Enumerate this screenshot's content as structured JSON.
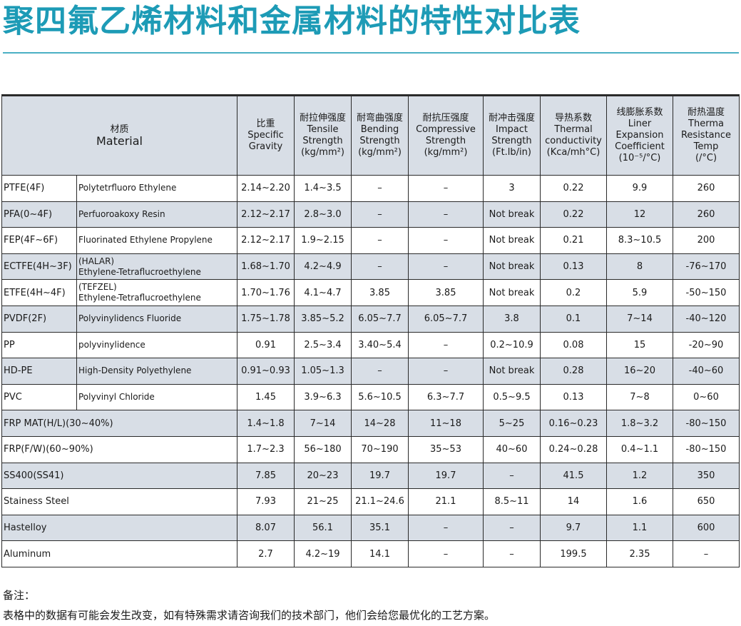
{
  "title": "聚四氟乙烯材料和金属材料的特性对比表",
  "header": {
    "material": {
      "zh": "材质",
      "en": "Material"
    },
    "columns": [
      {
        "zh": "比重",
        "en": [
          "Specific",
          "Gravity"
        ]
      },
      {
        "zh": "耐拉伸强度",
        "en": [
          "Tensile",
          "Strength",
          "(kg/mm²)"
        ]
      },
      {
        "zh": "耐弯曲强度",
        "en": [
          "Bending",
          "Strength",
          "(kg/mm²)"
        ]
      },
      {
        "zh": "耐抗压强度",
        "en": [
          "Compressive",
          "Strength",
          "(kg/mm²)"
        ]
      },
      {
        "zh": "耐冲击强度",
        "en": [
          "Impact",
          "Strength",
          "(Ft.lb/in)"
        ]
      },
      {
        "zh": "导热系数",
        "en": [
          "Thermal",
          "conductivity",
          "(Kca/mh°C)"
        ]
      },
      {
        "zh": "线膨胀系数",
        "en": [
          "Liner",
          "Expansion",
          "Coefficient",
          "(10⁻⁵/°C)"
        ]
      },
      {
        "zh": "耐热温度",
        "en": [
          "Therma",
          "Resistance",
          "Temp",
          "(/°C)"
        ]
      }
    ]
  },
  "rows": [
    {
      "code": "PTFE(4F)",
      "desc": [
        "Polytetrfluoro Ethylene"
      ],
      "values": [
        "2.14~2.20",
        "1.4~3.5",
        "–",
        "–",
        "3",
        "0.22",
        "9.9",
        "260"
      ],
      "shaded": false
    },
    {
      "code": "PFA(0~4F)",
      "desc": [
        "Perfuoroakoxy Resin"
      ],
      "values": [
        "2.12~2.17",
        "2.8~3.0",
        "–",
        "–",
        "Not break",
        "0.22",
        "12",
        "260"
      ],
      "shaded": true
    },
    {
      "code": "FEP(4F~6F)",
      "desc": [
        "Fluorinated Ethylene Propylene"
      ],
      "values": [
        "2.12~2.17",
        "1.9~2.15",
        "–",
        "–",
        "Not break",
        "0.21",
        "8.3~10.5",
        "200"
      ],
      "shaded": false
    },
    {
      "code": "ECTFE(4H~3F)",
      "desc": [
        "(HALAR)",
        "Ethylene-Tetraflucroethylene"
      ],
      "values": [
        "1.68~1.70",
        "4.2~4.9",
        "–",
        "–",
        "Not break",
        "0.13",
        "8",
        "-76~170"
      ],
      "shaded": true
    },
    {
      "code": "ETFE(4H~4F)",
      "desc": [
        "(TEFZEL)",
        "Ethylene-Tetraflucroethylene"
      ],
      "values": [
        "1.70~1.76",
        "4.1~4.7",
        "3.85",
        "3.85",
        "Not break",
        "0.2",
        "5.9",
        "-50~150"
      ],
      "shaded": false
    },
    {
      "code": "PVDF(2F)",
      "desc": [
        "Polyvinylidencs Fluoride"
      ],
      "values": [
        "1.75~1.78",
        "3.85~5.2",
        "6.05~7.7",
        "6.05~7.7",
        "3.8",
        "0.1",
        "7~14",
        "-40~120"
      ],
      "shaded": true
    },
    {
      "code": "PP",
      "desc": [
        "polyvinylidence"
      ],
      "values": [
        "0.91",
        "2.5~3.4",
        "3.40~5.4",
        "–",
        "0.2~10.9",
        "0.08",
        "15",
        "-20~90"
      ],
      "shaded": false
    },
    {
      "code": "HD-PE",
      "desc": [
        "High-Density Polyethylene"
      ],
      "values": [
        "0.91~0.93",
        "1.05~1.3",
        "–",
        "–",
        "Not break",
        "0.28",
        "16~20",
        "-40~60"
      ],
      "shaded": true
    },
    {
      "code": "PVC",
      "desc": [
        "Polyvinyl Chloride"
      ],
      "values": [
        "1.45",
        "3.9~6.3",
        "5.6~10.5",
        "6.3~7.7",
        "0.5~9.5",
        "0.13",
        "7~8",
        "0~60"
      ],
      "shaded": false
    },
    {
      "code": "FRP MAT(H/L)(30~40%)",
      "desc": null,
      "values": [
        "1.4~1.8",
        "7~14",
        "14~28",
        "11~18",
        "5~25",
        "0.16~0.23",
        "1.8~3.2",
        "-80~150"
      ],
      "shaded": true
    },
    {
      "code": "FRP(F/W)(60~90%)",
      "desc": null,
      "values": [
        "1.7~2.3",
        "56~180",
        "70~190",
        "35~53",
        "40~60",
        "0.24~0.28",
        "0.4~1.1",
        "-80~150"
      ],
      "shaded": false
    },
    {
      "code": "SS400(SS41)",
      "desc": null,
      "values": [
        "7.85",
        "20~23",
        "19.7",
        "19.7",
        "–",
        "41.5",
        "1.2",
        "350"
      ],
      "shaded": true
    },
    {
      "code": "Stainess Steel",
      "desc": null,
      "values": [
        "7.93",
        "21~25",
        "21.1~24.6",
        "21.1",
        "8.5~11",
        "14",
        "1.6",
        "650"
      ],
      "shaded": false
    },
    {
      "code": "Hastelloy",
      "desc": null,
      "values": [
        "8.07",
        "56.1",
        "35.1",
        "–",
        "–",
        "9.7",
        "1.1",
        "600"
      ],
      "shaded": true
    },
    {
      "code": "Aluminum",
      "desc": null,
      "values": [
        "2.7",
        "4.2~19",
        "14.1",
        "–",
        "–",
        "199.5",
        "2.35",
        "–"
      ],
      "shaded": false
    }
  ],
  "notes": {
    "label": "备注：",
    "text": "表格中的数据有可能会发生改变，如有特殊需求请咨询我们的技术部门，他们会给您最优化的工艺方案。"
  }
}
